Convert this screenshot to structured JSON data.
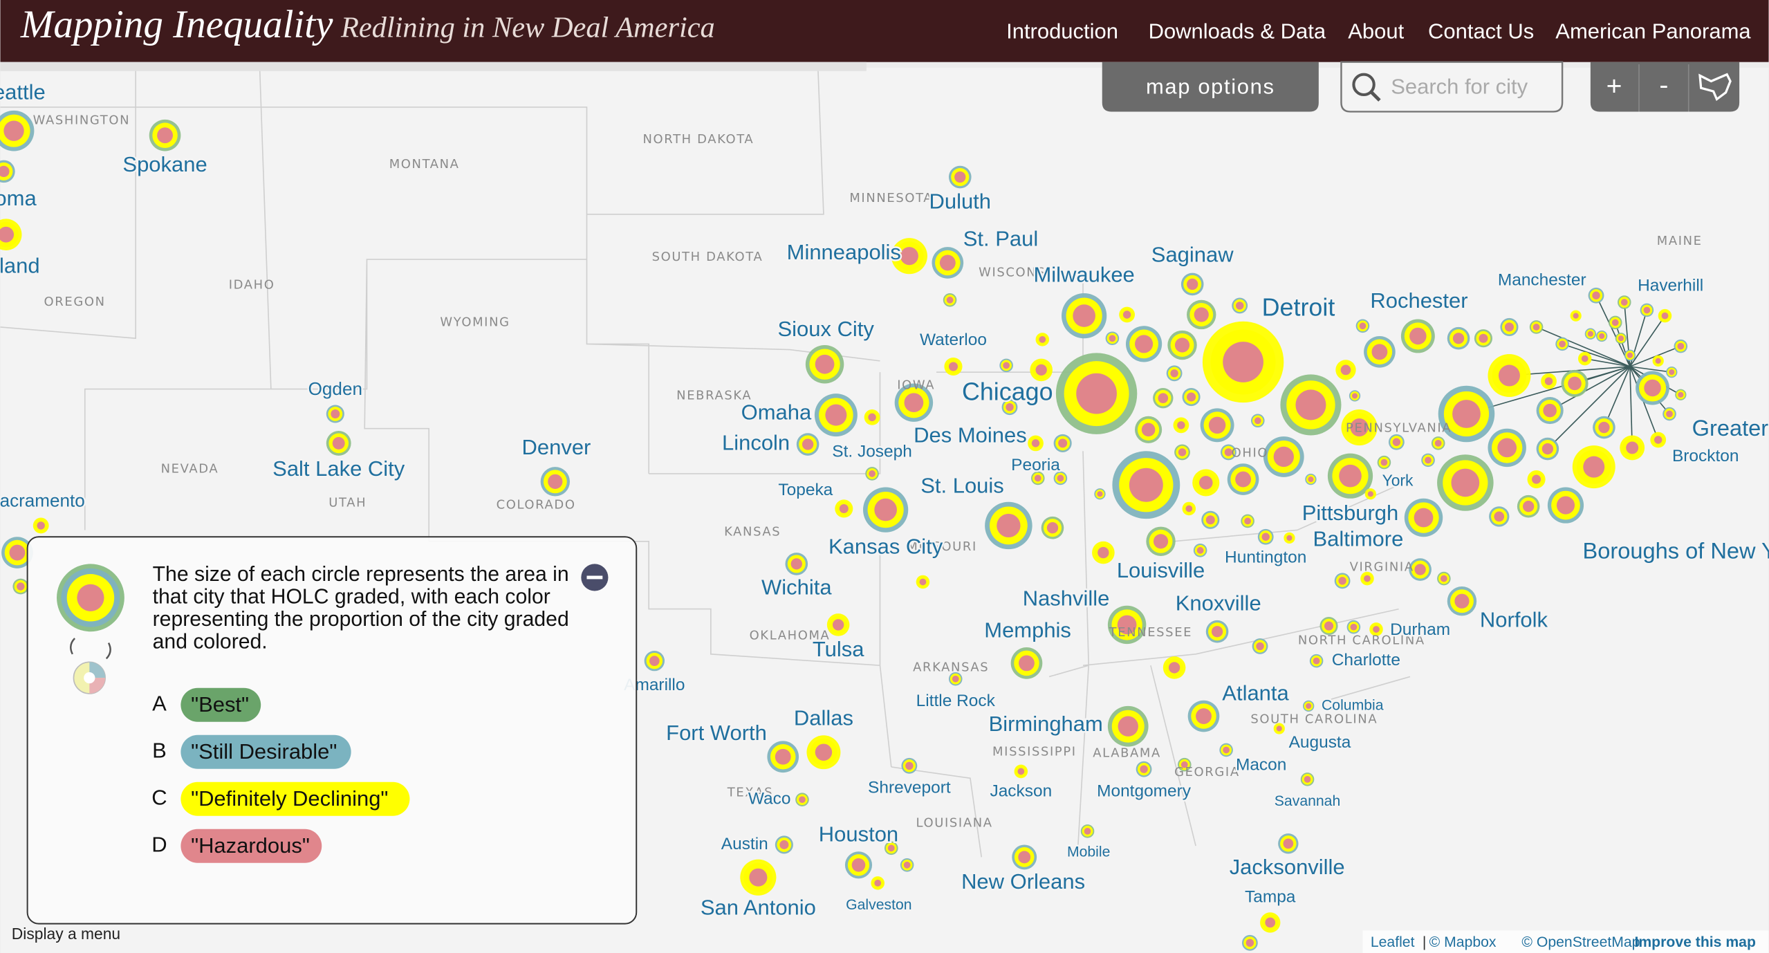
{
  "header": {
    "title": "Mapping Inequality",
    "subtitle": "Redlining in New Deal America"
  },
  "nav": [
    "Introduction",
    "Downloads & Data",
    "About",
    "Contact Us",
    "American Panorama"
  ],
  "controls": {
    "map_options": "map options",
    "search_placeholder": "Search for city",
    "zoom_in": "+",
    "zoom_out": "-"
  },
  "cities": [
    "Seattle",
    "Spokane",
    "Tacoma",
    "Portland",
    "Ogden",
    "Salt Lake City",
    "Denver",
    "Sacramento",
    "Duluth",
    "St. Paul",
    "Minneapolis",
    "Milwaukee",
    "Saginaw",
    "Detroit",
    "Rochester",
    "Manchester",
    "Haverhill",
    "Sioux City",
    "Waterloo",
    "Chicago",
    "Omaha",
    "Lincoln",
    "Des Moines",
    "St. Joseph",
    "Peoria",
    "York",
    "Greater Boston",
    "Brockton",
    "Topeka",
    "St. Louis",
    "Pittsburgh",
    "Baltimore",
    "Kansas City",
    "Huntington",
    "Boroughs of New York City",
    "Louisville",
    "Wichita",
    "Nashville",
    "Knoxville",
    "Norfolk",
    "Memphis",
    "Durham",
    "Tulsa",
    "Charlotte",
    "Amarillo",
    "Atlanta",
    "Little Rock",
    "Columbia",
    "Birmingham",
    "Dallas",
    "Fort Worth",
    "Augusta",
    "Macon",
    "Shreveport",
    "Jackson",
    "Montgomery",
    "Waco",
    "Savannah",
    "Austin",
    "Houston",
    "Mobile",
    "Jacksonville",
    "Galveston",
    "New Orleans",
    "San Antonio",
    "Tampa"
  ],
  "states": [
    "WASHINGTON",
    "MONTANA",
    "NORTH DAKOTA",
    "MINNESOTA",
    "SOUTH DAKOTA",
    "IDAHO",
    "OREGON",
    "WYOMING",
    "NEBRASKA",
    "NEVADA",
    "UTAH",
    "COLORADO",
    "KANSAS",
    "OKLAHOMA",
    "ARKANSAS",
    "MISSISSIPPI",
    "ALABAMA",
    "LOUISIANA",
    "TEXAS",
    "MAINE",
    "NORTH CAROLINA",
    "SOUTH CAROLINA",
    "GEORGIA",
    "IOWA",
    "MISSOURI",
    "TENNESSEE",
    "OHIO",
    "VIRGINIA",
    "PENNSYLVANIA",
    "WISCONSIN"
  ],
  "legend": {
    "description": "The size of each circle represents the area in that city that HOLC graded, with each color representing the proportion of the city graded and colored.",
    "grades": [
      {
        "letter": "A",
        "label": "\"Best\""
      },
      {
        "letter": "B",
        "label": "\"Still Desirable\""
      },
      {
        "letter": "C",
        "label": "\"Definitely Declining\""
      },
      {
        "letter": "D",
        "label": "\"Hazardous\""
      }
    ]
  },
  "menu_hint": "Display a menu",
  "attribution": [
    "Leaflet",
    "|",
    "© Mapbox",
    "© OpenStreetMap",
    "Improve this map"
  ]
}
